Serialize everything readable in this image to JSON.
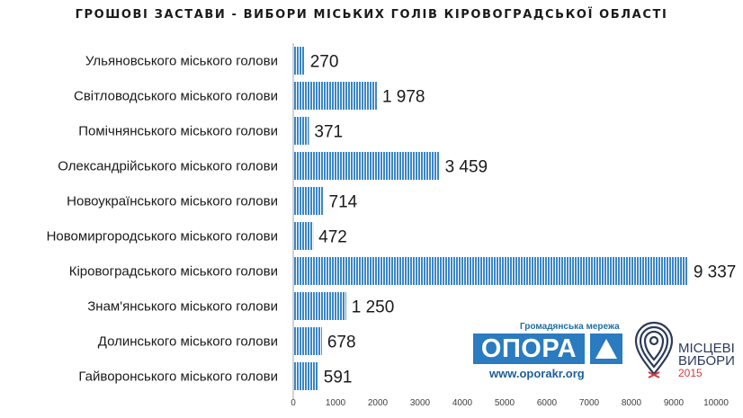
{
  "chart_data": {
    "type": "bar",
    "orientation": "horizontal",
    "title": "ГРОШОВІ ЗАСТАВИ - ВИБОРИ МІСЬКИХ  ГОЛІВ КІРОВОГРАДСЬКОЇ ОБЛАСТІ",
    "categories": [
      "Ульяновського міського голови",
      "Світловодського міського голови",
      "Помічнянського міського голови",
      "Олександрійського міського голови",
      "Новоукраїнського міського голови",
      "Новомиргородського міського голови",
      "Кіровоградського міського голови",
      "Знам'янського міського голови",
      "Долинського міського голови",
      "Гайворонського міського голови"
    ],
    "values": [
      270,
      1978,
      371,
      3459,
      714,
      472,
      9337,
      1250,
      678,
      591
    ],
    "value_labels": [
      "270",
      "1 978",
      "371",
      "3 459",
      "714",
      "472",
      "9 337",
      "1 250",
      "678",
      "591"
    ],
    "xlim": [
      0,
      10000
    ],
    "xticks": [
      0,
      1000,
      2000,
      3000,
      4000,
      5000,
      6000,
      7000,
      8000,
      9000,
      10000
    ],
    "xtick_labels": [
      "0",
      "1000",
      "2000",
      "3000",
      "4000",
      "5000",
      "6000",
      "7000",
      "8000",
      "9000",
      "10000"
    ],
    "grid": false,
    "bar_color": "#3a86c8",
    "bar_fill": "vertical-stripes"
  },
  "logos": {
    "opora_tagline": "Громадянська мережа",
    "opora_name": "ОПОРА",
    "opora_url": "www.oporakr.org",
    "vybory_line1": "МІСЦЕВІ",
    "vybory_line2": "ВИБОРИ",
    "vybory_year": "2015",
    "opora_color": "#2a7bc0",
    "vybory_color": "#2d3a5a",
    "vybory_accent": "#d23a3a"
  }
}
